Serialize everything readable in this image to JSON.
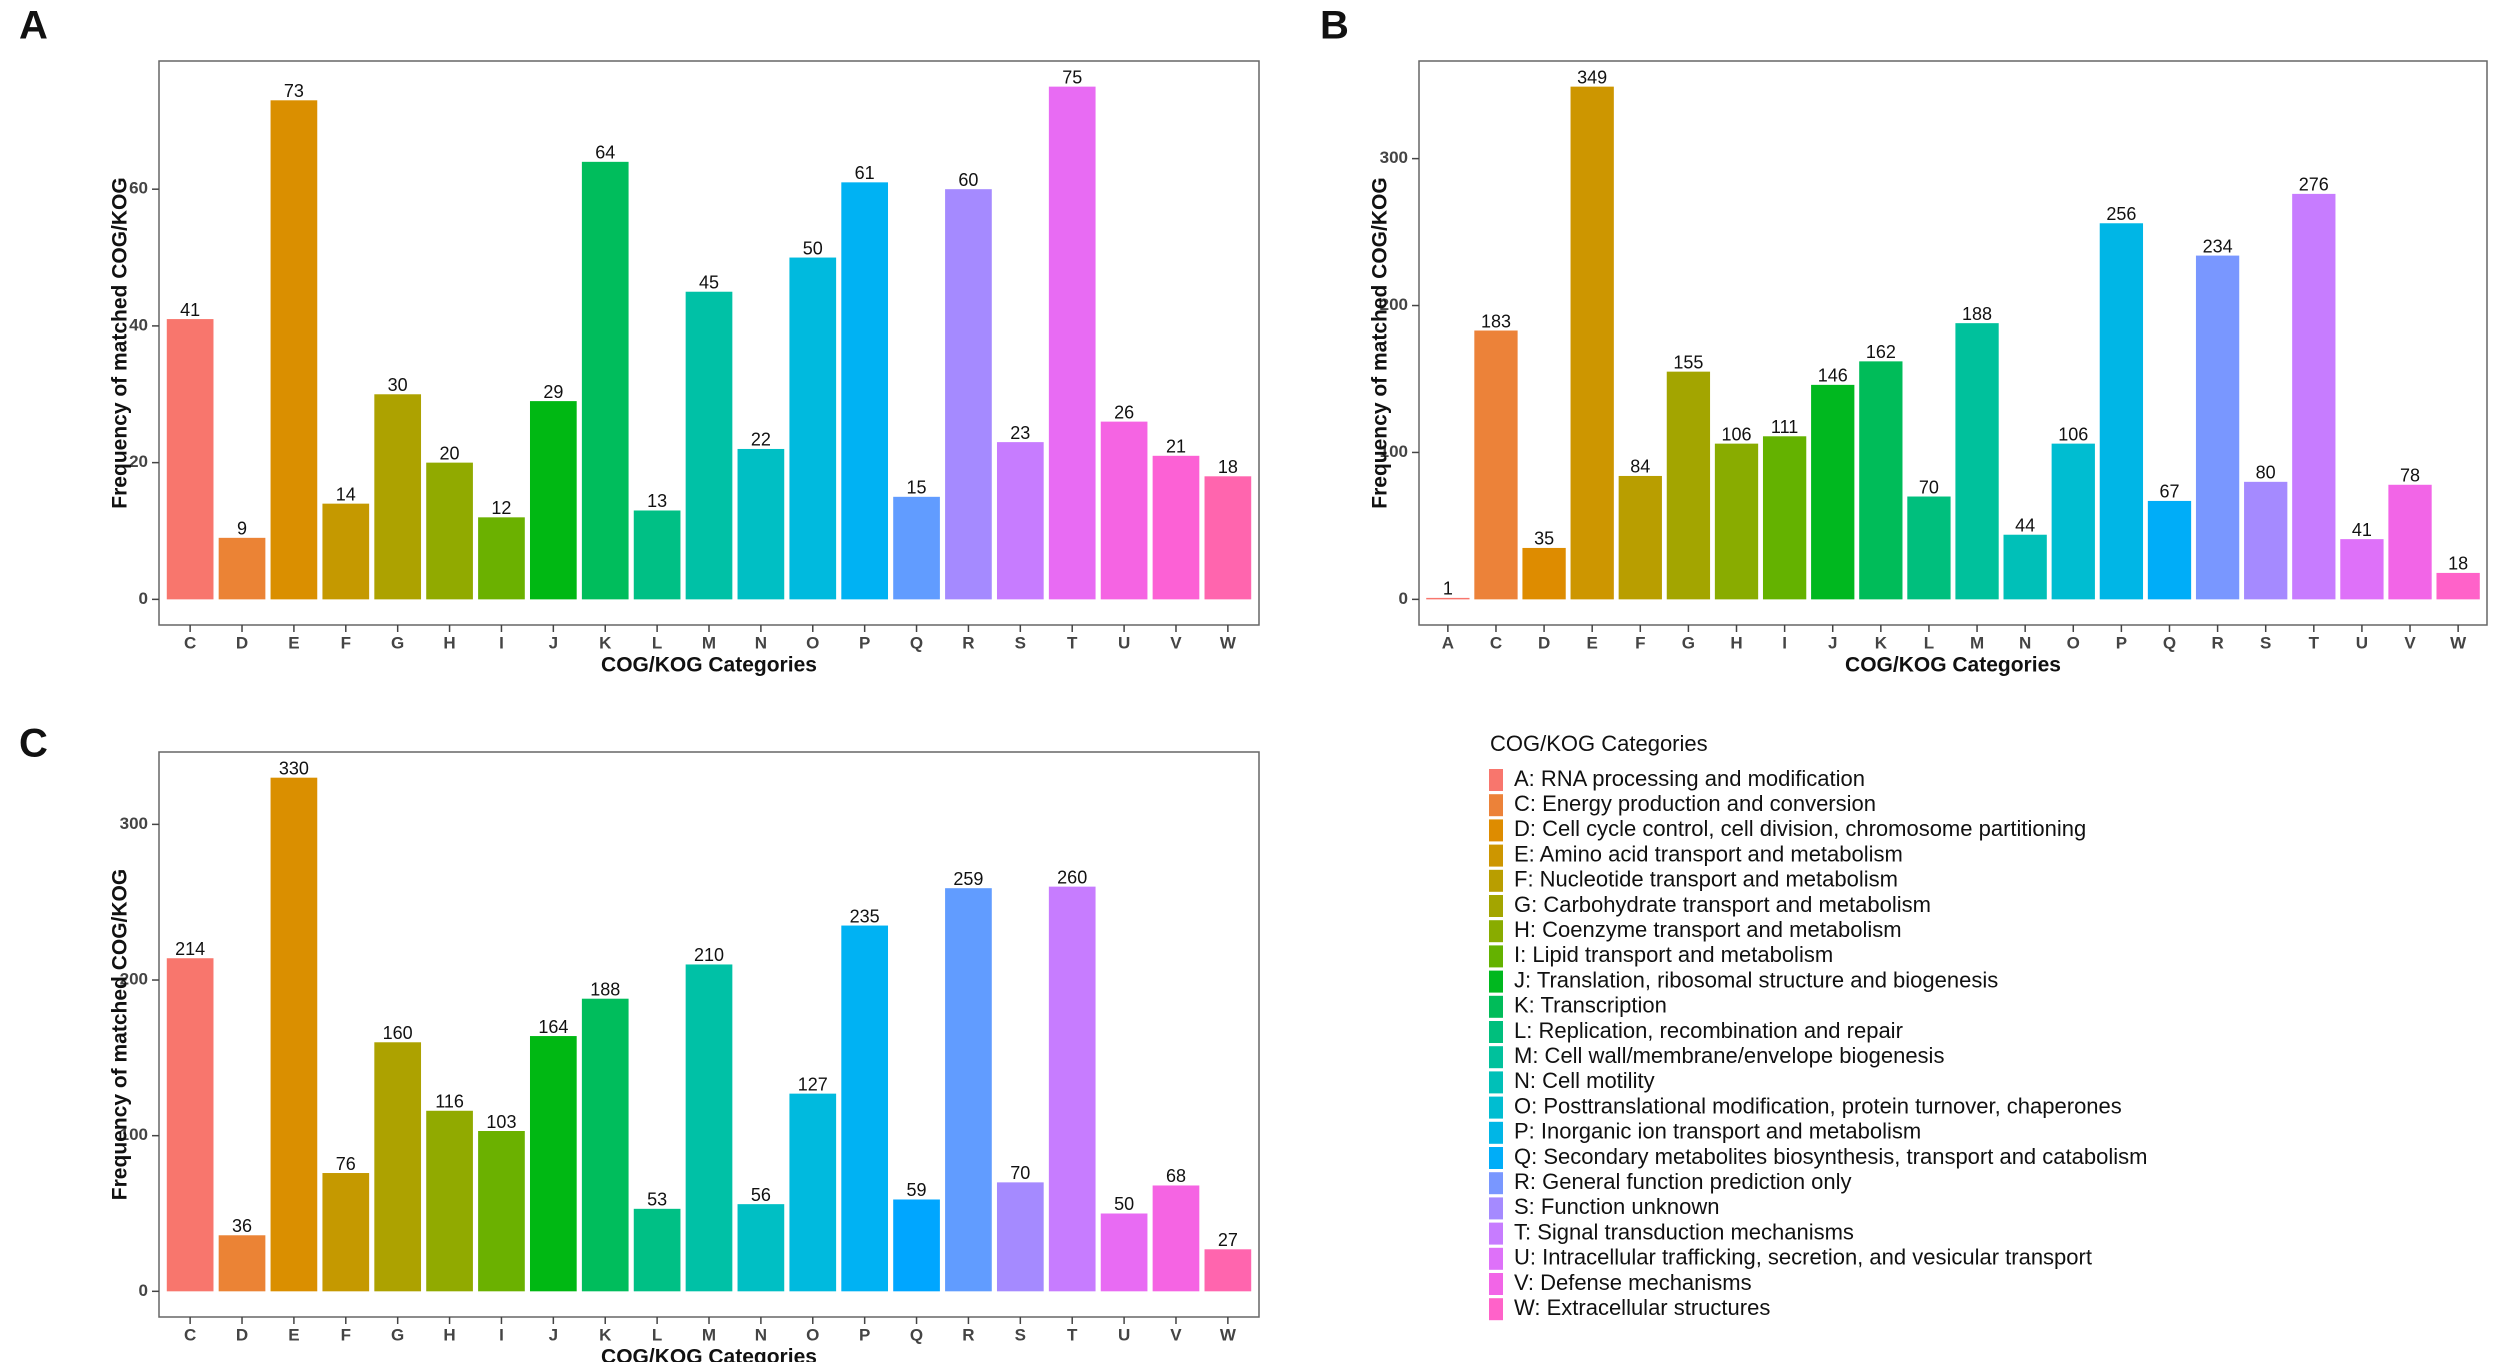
{
  "chart_data": [
    {
      "type": "bar",
      "panel": "A",
      "xlabel": "COG/KOG Categories",
      "ylabel": "Frequency of matched COG/KOG",
      "categories": [
        "C",
        "D",
        "E",
        "F",
        "G",
        "H",
        "I",
        "J",
        "K",
        "L",
        "M",
        "N",
        "O",
        "P",
        "Q",
        "R",
        "S",
        "T",
        "U",
        "V",
        "W"
      ],
      "values": [
        41,
        9,
        73,
        14,
        30,
        20,
        12,
        29,
        64,
        13,
        45,
        22,
        50,
        61,
        15,
        60,
        23,
        75,
        26,
        21,
        18
      ],
      "colors": [
        "#F8766D",
        "#EB8335",
        "#DA8F00",
        "#C59900",
        "#ADA200",
        "#91AA00",
        "#6BB100",
        "#00B813",
        "#00BD5C",
        "#00C085",
        "#00C1A6",
        "#00BFC4",
        "#00BADE",
        "#00B2F3",
        "#619CFF",
        "#A58AFF",
        "#C77CFF",
        "#E86BF3",
        "#F564E3",
        "#FC61D5",
        "#FF65AE"
      ],
      "ylim": [
        -3.75,
        78.75
      ],
      "yticks": [
        0,
        20,
        40,
        60
      ]
    },
    {
      "type": "bar",
      "panel": "B",
      "xlabel": "COG/KOG Categories",
      "ylabel": "Frequency of matched COG/KOG",
      "categories": [
        "A",
        "C",
        "D",
        "E",
        "F",
        "G",
        "H",
        "I",
        "J",
        "K",
        "L",
        "M",
        "N",
        "O",
        "P",
        "Q",
        "R",
        "S",
        "T",
        "U",
        "V",
        "W"
      ],
      "values": [
        1,
        183,
        35,
        349,
        84,
        155,
        106,
        111,
        146,
        162,
        70,
        188,
        44,
        106,
        256,
        67,
        234,
        80,
        276,
        41,
        78,
        18
      ],
      "colors": [
        "#F8766D",
        "#EC8239",
        "#DE8C00",
        "#CD9600",
        "#B99E00",
        "#A3A500",
        "#89AC00",
        "#64B200",
        "#00B81F",
        "#00BC59",
        "#00BF7D",
        "#00C19C",
        "#00C0B8",
        "#00BDD1",
        "#00B6E6",
        "#00ADF8",
        "#7997FF",
        "#A58AFF",
        "#C77CFF",
        "#DE71F9",
        "#F265E7",
        "#FF62C9"
      ],
      "ylim": [
        -17.45,
        366.45
      ],
      "yticks": [
        0,
        100,
        200,
        300
      ]
    },
    {
      "type": "bar",
      "panel": "C",
      "xlabel": "COG/KOG Categories",
      "ylabel": "Frequency of matched COG/KOG",
      "categories": [
        "C",
        "D",
        "E",
        "F",
        "G",
        "H",
        "I",
        "J",
        "K",
        "L",
        "M",
        "N",
        "O",
        "P",
        "Q",
        "R",
        "S",
        "T",
        "U",
        "V",
        "W"
      ],
      "values": [
        214,
        36,
        330,
        76,
        160,
        116,
        103,
        164,
        188,
        53,
        210,
        56,
        127,
        235,
        59,
        259,
        70,
        260,
        50,
        68,
        27
      ],
      "colors": [
        "#F8766D",
        "#EB8335",
        "#DA8F00",
        "#C59900",
        "#ADA200",
        "#91AA00",
        "#6BB100",
        "#00B813",
        "#00BD5C",
        "#00C085",
        "#00C1A6",
        "#00BFC4",
        "#00BADE",
        "#00B2F3",
        "#00A6FF",
        "#619CFF",
        "#A58AFF",
        "#C77CFF",
        "#E86BF3",
        "#F564E3",
        "#FF65AE"
      ],
      "ylim": [
        -16.5,
        346.5
      ],
      "yticks": [
        0,
        100,
        200,
        300
      ]
    }
  ],
  "legend": {
    "title": "COG/KOG Categories",
    "items": [
      {
        "label": "A: RNA processing and modification",
        "color": "#F8766D"
      },
      {
        "label": "C: Energy production and conversion",
        "color": "#EC8239"
      },
      {
        "label": "D: Cell cycle control, cell division, chromosome partitioning",
        "color": "#DE8C00"
      },
      {
        "label": "E: Amino acid transport and metabolism",
        "color": "#CD9600"
      },
      {
        "label": "F: Nucleotide transport and metabolism",
        "color": "#B99E00"
      },
      {
        "label": "G: Carbohydrate transport and metabolism",
        "color": "#A3A500"
      },
      {
        "label": "H: Coenzyme transport and metabolism",
        "color": "#89AC00"
      },
      {
        "label": "I: Lipid transport and metabolism",
        "color": "#64B200"
      },
      {
        "label": "J: Translation, ribosomal structure and biogenesis",
        "color": "#00B81F"
      },
      {
        "label": "K: Transcription",
        "color": "#00BC59"
      },
      {
        "label": "L: Replication, recombination and repair",
        "color": "#00BF7D"
      },
      {
        "label": "M: Cell wall/membrane/envelope biogenesis",
        "color": "#00C19C"
      },
      {
        "label": "N: Cell motility",
        "color": "#00C0B8"
      },
      {
        "label": "O: Posttranslational modification, protein turnover, chaperones",
        "color": "#00BDD1"
      },
      {
        "label": "P: Inorganic ion transport and metabolism",
        "color": "#00B6E6"
      },
      {
        "label": "Q: Secondary metabolites biosynthesis, transport and catabolism",
        "color": "#00ADF8"
      },
      {
        "label": "R: General function prediction only",
        "color": "#7997FF"
      },
      {
        "label": "S: Function unknown",
        "color": "#A58AFF"
      },
      {
        "label": "T: Signal transduction mechanisms",
        "color": "#C77CFF"
      },
      {
        "label": "U: Intracellular trafficking, secretion, and vesicular transport",
        "color": "#DE71F9"
      },
      {
        "label": "V: Defense mechanisms",
        "color": "#F265E7"
      },
      {
        "label": "W: Extracellular structures",
        "color": "#FF62C9"
      }
    ]
  }
}
